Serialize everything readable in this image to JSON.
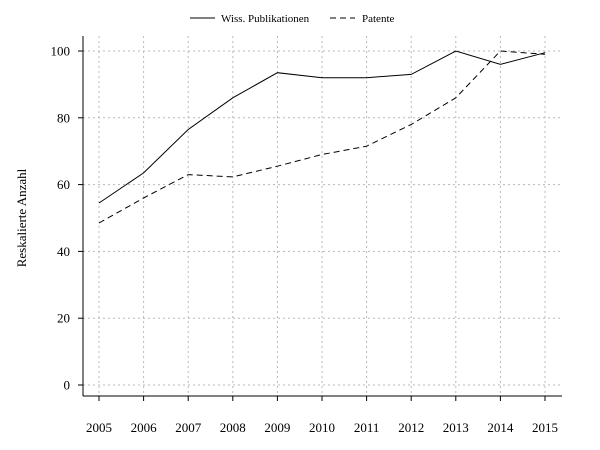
{
  "chart_data": {
    "type": "line",
    "title": "",
    "xlabel": "",
    "ylabel": "Reskalierte Anzahl",
    "categories": [
      "2005",
      "2006",
      "2007",
      "2008",
      "2009",
      "2010",
      "2011",
      "2012",
      "2013",
      "2014",
      "2015"
    ],
    "series": [
      {
        "name": "Wiss. Publikationen",
        "line_style": "solid",
        "values": [
          54.5,
          63.5,
          76.5,
          86,
          93.5,
          92,
          92,
          93,
          100,
          96,
          99.5
        ]
      },
      {
        "name": "Patente",
        "line_style": "dashed",
        "values": [
          48.5,
          56,
          63,
          62.3,
          65.5,
          69,
          71.5,
          78,
          86,
          100,
          99
        ]
      }
    ],
    "ylim": [
      0,
      100
    ],
    "y_ticks": [
      "0",
      "20",
      "40",
      "60",
      "80",
      "100"
    ],
    "grid": true,
    "legend_position": "top"
  }
}
